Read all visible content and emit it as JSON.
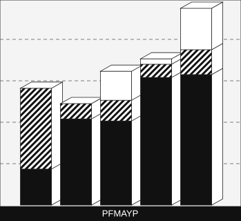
{
  "chart_data": {
    "type": "bar3d_stacked",
    "categories": [
      null,
      null,
      null,
      null,
      null
    ],
    "series": [
      {
        "color": "#111111",
        "values": [
          0.87,
          2.08,
          2.03,
          3.08,
          3.15
        ]
      },
      {
        "color": "#111111",
        "fill": "hatch",
        "values": [
          1.95,
          0.37,
          0.5,
          0.32,
          0.6
        ]
      },
      {
        "color": "#ffffff",
        "values": [
          0,
          0,
          0.7,
          0.13,
          1.0
        ]
      }
    ],
    "ylim": [
      0,
      5
    ],
    "yticks": [
      1,
      2,
      3,
      4
    ],
    "grid": true,
    "watermark": "PFMAYP"
  }
}
